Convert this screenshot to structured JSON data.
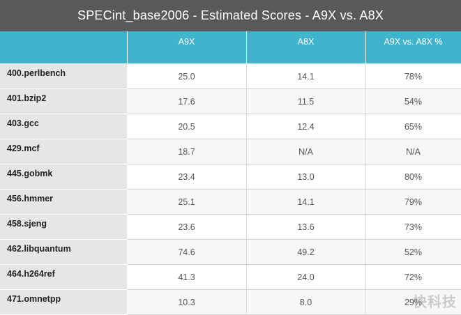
{
  "title": "SPECint_base2006 - Estimated Scores - A9X vs. A8X",
  "chart_data": {
    "type": "table",
    "title": "SPECint_base2006 - Estimated Scores - A9X vs. A8X",
    "columns": [
      "",
      "A9X",
      "A8X",
      "A9X vs. A8X %"
    ],
    "rows": [
      {
        "name": "400.perlbench",
        "a9x": "25.0",
        "a8x": "14.1",
        "pct": "78%"
      },
      {
        "name": "401.bzip2",
        "a9x": "17.6",
        "a8x": "11.5",
        "pct": "54%"
      },
      {
        "name": "403.gcc",
        "a9x": "20.5",
        "a8x": "12.4",
        "pct": "65%"
      },
      {
        "name": "429.mcf",
        "a9x": "18.7",
        "a8x": "N/A",
        "pct": "N/A"
      },
      {
        "name": "445.gobmk",
        "a9x": "23.4",
        "a8x": "13.0",
        "pct": "80%"
      },
      {
        "name": "456.hmmer",
        "a9x": "25.1",
        "a8x": "14.1",
        "pct": "79%"
      },
      {
        "name": "458.sjeng",
        "a9x": "23.6",
        "a8x": "13.6",
        "pct": "73%"
      },
      {
        "name": "462.libquantum",
        "a9x": "74.6",
        "a8x": "49.2",
        "pct": "52%"
      },
      {
        "name": "464.h264ref",
        "a9x": "41.3",
        "a8x": "24.0",
        "pct": "72%"
      },
      {
        "name": "471.omnetpp",
        "a9x": "10.3",
        "a8x": "8.0",
        "pct": "29%"
      }
    ]
  },
  "watermark": "快科技"
}
